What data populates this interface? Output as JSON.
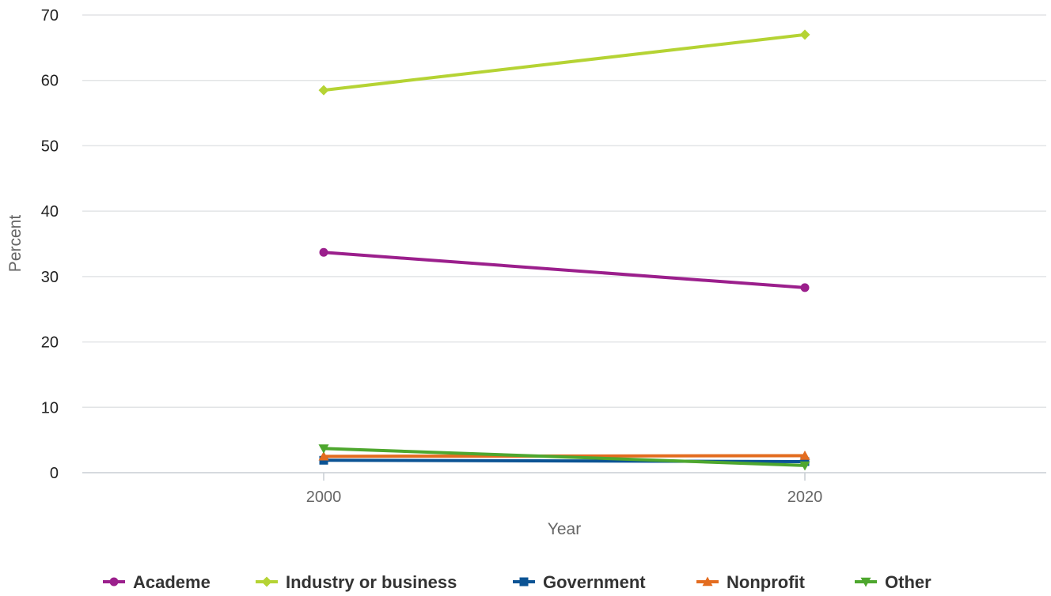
{
  "chart_data": {
    "type": "line",
    "xlabel": "Year",
    "ylabel": "Percent",
    "x": [
      2000,
      2020
    ],
    "x_tick_labels": [
      "2000",
      "2020"
    ],
    "ylim": [
      0,
      70
    ],
    "y_ticks": [
      0,
      10,
      20,
      30,
      40,
      50,
      60,
      70
    ],
    "grid": true,
    "legend_position": "bottom",
    "series": [
      {
        "name": "Academe",
        "values": [
          33.7,
          28.3
        ],
        "color": "#9b1f8c",
        "marker": "circle"
      },
      {
        "name": "Industry or business",
        "values": [
          58.5,
          67.0
        ],
        "color": "#b5d334",
        "marker": "diamond"
      },
      {
        "name": "Government",
        "values": [
          1.9,
          1.7
        ],
        "color": "#0b5394",
        "marker": "square"
      },
      {
        "name": "Nonprofit",
        "values": [
          2.5,
          2.6
        ],
        "color": "#e36c1f",
        "marker": "triangle-up"
      },
      {
        "name": "Other",
        "values": [
          3.7,
          1.1
        ],
        "color": "#4ea72e",
        "marker": "triangle-down"
      }
    ]
  }
}
